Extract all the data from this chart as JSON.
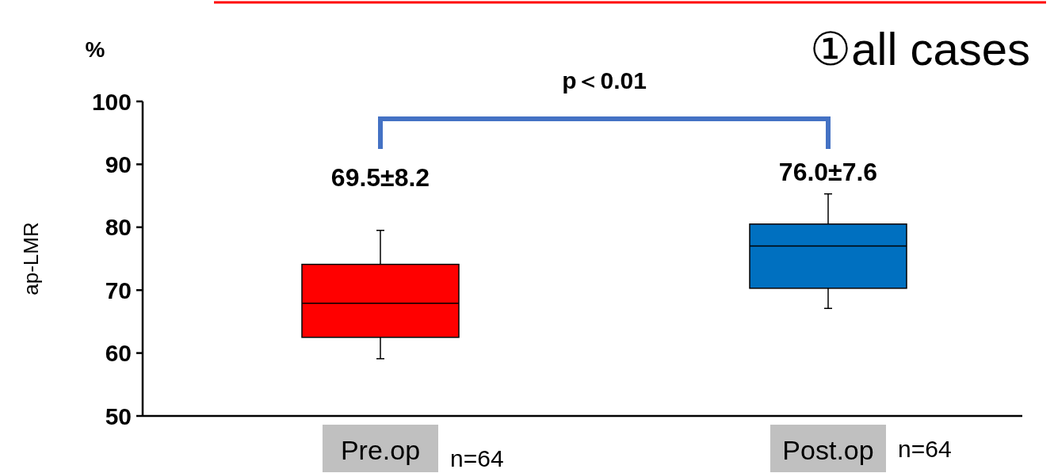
{
  "chart_data": {
    "type": "box",
    "title": "①all cases",
    "ylabel": "ap-LMR",
    "categories": [
      "Pre.op",
      "Post.op"
    ],
    "colors": [
      "#ff0000",
      "#0070c0"
    ],
    "boxes": [
      {
        "low": 59.1,
        "q1": 62.5,
        "median": 67.9,
        "q3": 74.1,
        "high": 79.5
      },
      {
        "low": 67.1,
        "q1": 70.3,
        "median": 77.0,
        "q3": 80.5,
        "high": 85.3
      }
    ],
    "ylim": [
      50,
      100
    ],
    "yticks": [
      50,
      60,
      70,
      80,
      90,
      100
    ],
    "grid": false,
    "annotations": [
      "%",
      "p＜0.01",
      "69.5±8.2",
      "76.0±7.6",
      "n=64",
      "n=64"
    ]
  }
}
